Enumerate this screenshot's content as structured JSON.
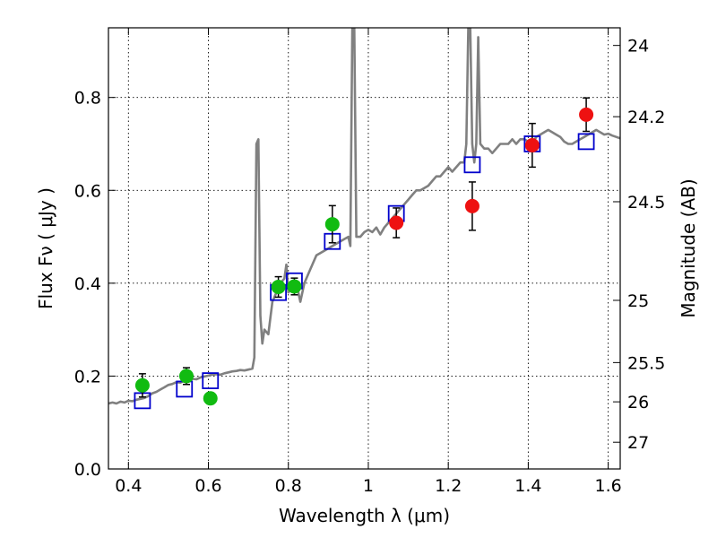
{
  "chart_data": {
    "type": "scatter",
    "title": "",
    "xlabel": "Wavelength  λ (μm)",
    "ylabel": "Flux  Fν  ( μJy )",
    "y2label": "Magnitude (AB)",
    "xlim": [
      0.35,
      1.63
    ],
    "ylim": [
      0.0,
      0.95
    ],
    "grid": true,
    "x_ticks": [
      {
        "value": 0.4,
        "label": "0.4"
      },
      {
        "value": 0.6,
        "label": "0.6"
      },
      {
        "value": 0.8,
        "label": "0.8"
      },
      {
        "value": 1.0,
        "label": "1"
      },
      {
        "value": 1.2,
        "label": "1.2"
      },
      {
        "value": 1.4,
        "label": "1.4"
      },
      {
        "value": 1.6,
        "label": "1.6"
      }
    ],
    "y_ticks": [
      {
        "value": 0.0,
        "label": "0.0"
      },
      {
        "value": 0.2,
        "label": "0.2"
      },
      {
        "value": 0.4,
        "label": "0.4"
      },
      {
        "value": 0.6,
        "label": "0.6"
      },
      {
        "value": 0.8,
        "label": "0.8"
      }
    ],
    "y2_ticks": [
      {
        "value": 24,
        "label": "24"
      },
      {
        "value": 24.2,
        "label": "24.2"
      },
      {
        "value": 24.5,
        "label": "24.5"
      },
      {
        "value": 25,
        "label": "25"
      },
      {
        "value": 25.5,
        "label": "25.5"
      },
      {
        "value": 26,
        "label": "26"
      },
      {
        "value": 27,
        "label": "27"
      }
    ],
    "colors": {
      "model_spectrum": "#808080",
      "model_photometry": "#0000cc",
      "observed_optical": "#11bb11",
      "observed_nir": "#ee1111",
      "error_bar": "#000000"
    },
    "series": [
      {
        "kind": "line",
        "color_key": "model_spectrum",
        "points": [
          [
            0.35,
            0.141
          ],
          [
            0.36,
            0.143
          ],
          [
            0.37,
            0.141
          ],
          [
            0.38,
            0.145
          ],
          [
            0.39,
            0.143
          ],
          [
            0.4,
            0.147
          ],
          [
            0.41,
            0.146
          ],
          [
            0.42,
            0.149
          ],
          [
            0.43,
            0.151
          ],
          [
            0.44,
            0.153
          ],
          [
            0.45,
            0.157
          ],
          [
            0.46,
            0.163
          ],
          [
            0.47,
            0.166
          ],
          [
            0.48,
            0.171
          ],
          [
            0.49,
            0.176
          ],
          [
            0.5,
            0.181
          ],
          [
            0.51,
            0.183
          ],
          [
            0.52,
            0.187
          ],
          [
            0.53,
            0.186
          ],
          [
            0.54,
            0.19
          ],
          [
            0.55,
            0.192
          ],
          [
            0.56,
            0.194
          ],
          [
            0.57,
            0.193
          ],
          [
            0.58,
            0.197
          ],
          [
            0.59,
            0.199
          ],
          [
            0.6,
            0.201
          ],
          [
            0.61,
            0.203
          ],
          [
            0.62,
            0.204
          ],
          [
            0.63,
            0.203
          ],
          [
            0.64,
            0.206
          ],
          [
            0.65,
            0.208
          ],
          [
            0.66,
            0.21
          ],
          [
            0.67,
            0.211
          ],
          [
            0.68,
            0.213
          ],
          [
            0.69,
            0.212
          ],
          [
            0.7,
            0.214
          ],
          [
            0.71,
            0.216
          ],
          [
            0.715,
            0.24
          ],
          [
            0.72,
            0.7
          ],
          [
            0.725,
            0.71
          ],
          [
            0.73,
            0.33
          ],
          [
            0.735,
            0.27
          ],
          [
            0.74,
            0.3
          ],
          [
            0.75,
            0.29
          ],
          [
            0.76,
            0.36
          ],
          [
            0.77,
            0.38
          ],
          [
            0.78,
            0.4
          ],
          [
            0.79,
            0.41
          ],
          [
            0.795,
            0.44
          ],
          [
            0.8,
            0.38
          ],
          [
            0.81,
            0.39
          ],
          [
            0.82,
            0.4
          ],
          [
            0.83,
            0.36
          ],
          [
            0.84,
            0.4
          ],
          [
            0.85,
            0.42
          ],
          [
            0.86,
            0.44
          ],
          [
            0.87,
            0.46
          ],
          [
            0.88,
            0.465
          ],
          [
            0.89,
            0.47
          ],
          [
            0.9,
            0.475
          ],
          [
            0.91,
            0.48
          ],
          [
            0.92,
            0.485
          ],
          [
            0.93,
            0.49
          ],
          [
            0.94,
            0.495
          ],
          [
            0.95,
            0.5
          ],
          [
            0.955,
            0.48
          ],
          [
            0.96,
            0.95
          ],
          [
            0.965,
            0.95
          ],
          [
            0.97,
            0.5
          ],
          [
            0.98,
            0.5
          ],
          [
            0.99,
            0.51
          ],
          [
            1.0,
            0.515
          ],
          [
            1.01,
            0.51
          ],
          [
            1.02,
            0.52
          ],
          [
            1.03,
            0.505
          ],
          [
            1.04,
            0.52
          ],
          [
            1.05,
            0.53
          ],
          [
            1.06,
            0.54
          ],
          [
            1.07,
            0.55
          ],
          [
            1.08,
            0.56
          ],
          [
            1.09,
            0.57
          ],
          [
            1.1,
            0.58
          ],
          [
            1.11,
            0.59
          ],
          [
            1.12,
            0.6
          ],
          [
            1.13,
            0.6
          ],
          [
            1.14,
            0.605
          ],
          [
            1.15,
            0.61
          ],
          [
            1.16,
            0.62
          ],
          [
            1.17,
            0.63
          ],
          [
            1.18,
            0.63
          ],
          [
            1.19,
            0.64
          ],
          [
            1.2,
            0.65
          ],
          [
            1.21,
            0.64
          ],
          [
            1.22,
            0.65
          ],
          [
            1.23,
            0.66
          ],
          [
            1.24,
            0.66
          ],
          [
            1.245,
            0.7
          ],
          [
            1.25,
            0.95
          ],
          [
            1.255,
            0.95
          ],
          [
            1.26,
            0.7
          ],
          [
            1.265,
            0.66
          ],
          [
            1.27,
            0.7
          ],
          [
            1.275,
            0.93
          ],
          [
            1.28,
            0.7
          ],
          [
            1.29,
            0.69
          ],
          [
            1.3,
            0.69
          ],
          [
            1.31,
            0.68
          ],
          [
            1.32,
            0.69
          ],
          [
            1.33,
            0.7
          ],
          [
            1.34,
            0.7
          ],
          [
            1.35,
            0.7
          ],
          [
            1.36,
            0.71
          ],
          [
            1.37,
            0.7
          ],
          [
            1.38,
            0.71
          ],
          [
            1.39,
            0.71
          ],
          [
            1.4,
            0.705
          ],
          [
            1.41,
            0.7
          ],
          [
            1.42,
            0.715
          ],
          [
            1.43,
            0.72
          ],
          [
            1.44,
            0.725
          ],
          [
            1.45,
            0.73
          ],
          [
            1.46,
            0.725
          ],
          [
            1.47,
            0.72
          ],
          [
            1.48,
            0.715
          ],
          [
            1.49,
            0.705
          ],
          [
            1.5,
            0.7
          ],
          [
            1.51,
            0.7
          ],
          [
            1.52,
            0.705
          ],
          [
            1.53,
            0.71
          ],
          [
            1.54,
            0.715
          ],
          [
            1.55,
            0.72
          ],
          [
            1.56,
            0.725
          ],
          [
            1.57,
            0.73
          ],
          [
            1.58,
            0.725
          ],
          [
            1.59,
            0.72
          ],
          [
            1.6,
            0.722
          ],
          [
            1.61,
            0.718
          ],
          [
            1.62,
            0.715
          ],
          [
            1.63,
            0.712
          ]
        ]
      },
      {
        "kind": "square",
        "color_key": "model_photometry",
        "points": [
          [
            0.435,
            0.147
          ],
          [
            0.54,
            0.172
          ],
          [
            0.605,
            0.19
          ],
          [
            0.775,
            0.38
          ],
          [
            0.815,
            0.405
          ],
          [
            0.91,
            0.49
          ],
          [
            1.07,
            0.55
          ],
          [
            1.26,
            0.655
          ],
          [
            1.41,
            0.7
          ],
          [
            1.545,
            0.705
          ]
        ]
      },
      {
        "kind": "errorbar",
        "color_key": "observed_optical",
        "points": [
          {
            "x": 0.435,
            "y": 0.18,
            "err": 0.025
          },
          {
            "x": 0.545,
            "y": 0.2,
            "err": 0.018
          },
          {
            "x": 0.605,
            "y": 0.152,
            "err": 0.012
          },
          {
            "x": 0.775,
            "y": 0.392,
            "err": 0.022
          },
          {
            "x": 0.815,
            "y": 0.393,
            "err": 0.018
          },
          {
            "x": 0.91,
            "y": 0.527,
            "err": 0.04
          }
        ]
      },
      {
        "kind": "errorbar",
        "color_key": "observed_nir",
        "points": [
          {
            "x": 1.07,
            "y": 0.53,
            "err": 0.032
          },
          {
            "x": 1.26,
            "y": 0.566,
            "err": 0.052
          },
          {
            "x": 1.41,
            "y": 0.697,
            "err": 0.047
          },
          {
            "x": 1.545,
            "y": 0.763,
            "err": 0.036
          }
        ]
      }
    ]
  }
}
